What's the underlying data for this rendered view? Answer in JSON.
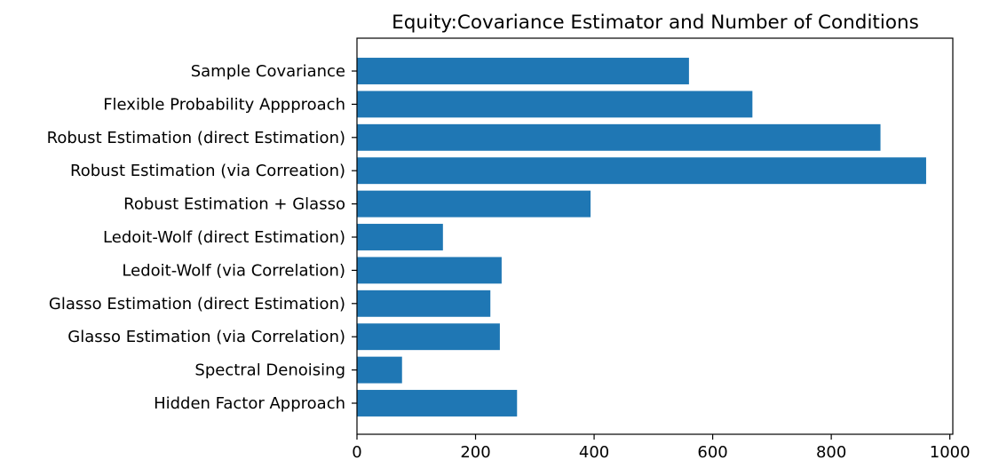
{
  "chart_data": {
    "type": "bar",
    "orientation": "horizontal",
    "title": "Equity:Covariance Estimator and Number of Conditions",
    "xlabel": "",
    "ylabel": "",
    "categories": [
      "Sample Covariance",
      "Flexible Probability Appproach",
      "Robust Estimation (direct Estimation)",
      "Robust Estimation (via Correation)",
      "Robust Estimation + Glasso",
      "Ledoit-Wolf (direct Estimation)",
      "Ledoit-Wolf (via Correlation)",
      "Glasso Estimation (direct Estimation)",
      "Glasso Estimation (via Correlation)",
      "Spectral Denoising",
      "Hidden Factor Approach"
    ],
    "values": [
      560,
      667,
      883,
      960,
      394,
      145,
      244,
      225,
      241,
      76,
      270
    ],
    "xlim": [
      0,
      1005
    ],
    "xticks": [
      0,
      200,
      400,
      600,
      800,
      1000
    ],
    "grid": false,
    "legend": "none",
    "bar_color": "#1f77b4"
  }
}
